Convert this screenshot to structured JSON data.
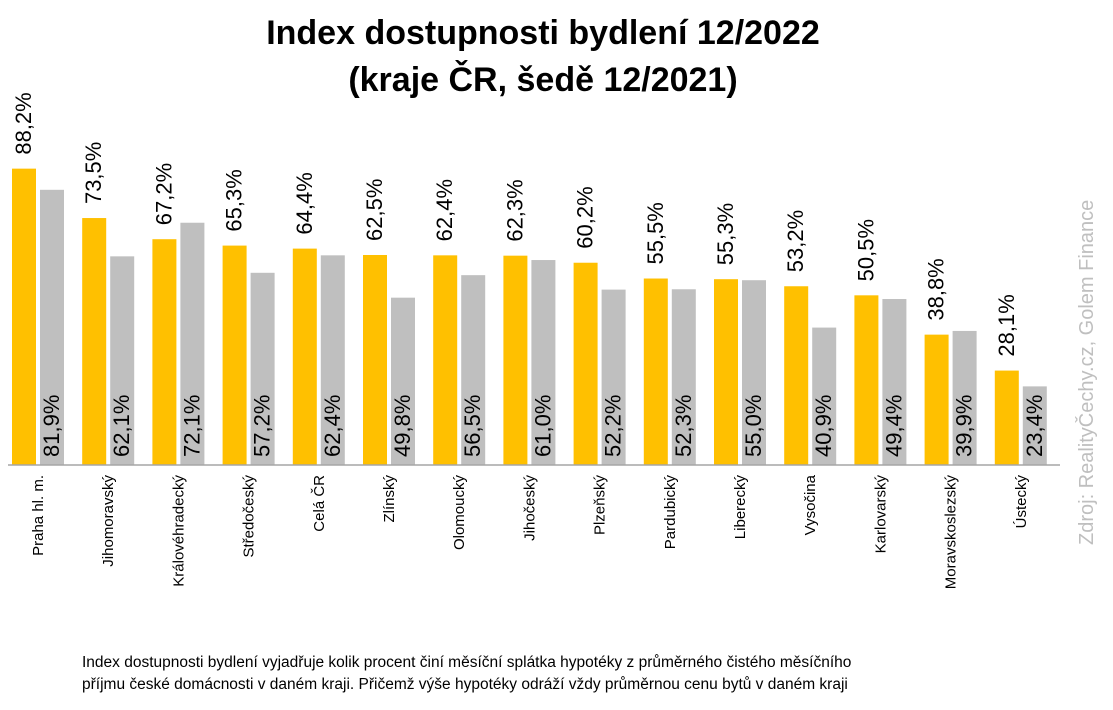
{
  "chart_data": {
    "type": "bar",
    "title": [
      "Index dostupnosti bydlení 12/2022",
      "(kraje ČR, šedě 12/2021)"
    ],
    "categories": [
      "Praha hl. m.",
      "Jihomoravský",
      "Královéhradecký",
      "Středočeský",
      "Celá ČR",
      "Zlínský",
      "Olomoucký",
      "Jihočeský",
      "Plzeňský",
      "Pardubický",
      "Liberecký",
      "Vysočina",
      "Karlovarský",
      "Moravskoslezský",
      "Ústecký"
    ],
    "series": [
      {
        "values": [
          88.2,
          73.5,
          67.2,
          65.3,
          64.4,
          62.5,
          62.4,
          62.3,
          60.2,
          55.5,
          55.3,
          53.2,
          50.5,
          38.8,
          28.1
        ],
        "labels": [
          "88,2%",
          "73,5%",
          "67,2%",
          "65,3%",
          "64,4%",
          "62,5%",
          "62,4%",
          "62,3%",
          "60,2%",
          "55,5%",
          "55,3%",
          "53,2%",
          "50,5%",
          "38,8%",
          "28,1%"
        ],
        "color": "#ffc000"
      },
      {
        "values": [
          81.9,
          62.1,
          72.1,
          57.2,
          62.4,
          49.8,
          56.5,
          61.0,
          52.2,
          52.3,
          55.0,
          40.9,
          49.4,
          39.9,
          23.4
        ],
        "labels": [
          "81,9%",
          "62,1%",
          "72,1%",
          "57,2%",
          "62,4%",
          "49,8%",
          "56,5%",
          "61,0%",
          "52,2%",
          "52,3%",
          "55,0%",
          "40,9%",
          "49,4%",
          "39,9%",
          "23,4%"
        ],
        "color": "#bfbfbf"
      }
    ],
    "ylim": [
      0,
      100
    ],
    "grid": false,
    "legend": "none",
    "xlabel": "",
    "ylabel": ""
  },
  "source": "Zdroj: RealityČechy.cz, Golem Finance",
  "footnote": [
    "Index dostupnosti bydlení vyjadřuje kolik procent činí měsíční splátka hypotéky z průměrného čistého měsíčního",
    "příjmu české domácnosti v daném kraji. Přičemž výše hypotéky odráží  vždy průměrnou cenu bytů v daném kraji"
  ],
  "colors": {
    "axis": "#a6a6a6",
    "text": "#000000",
    "source": "#bfbfbf"
  }
}
